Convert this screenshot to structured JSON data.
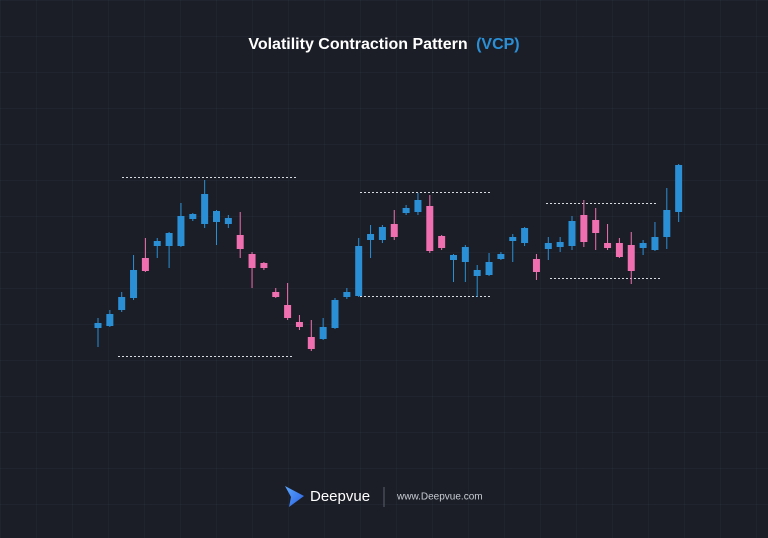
{
  "chart_data": {
    "type": "candlestick",
    "title": "Volatility Contraction Pattern",
    "title_highlight": "(VCP)",
    "up_color": "#2b8fd6",
    "down_color": "#f06fb0",
    "ylim": [
      30,
      250
    ],
    "categories": [
      null,
      null,
      null,
      null,
      null,
      null,
      null,
      null,
      null,
      null,
      null,
      null,
      null,
      null,
      null,
      null,
      null,
      null,
      null,
      null,
      null,
      null,
      null,
      null,
      null,
      null,
      null,
      null,
      null,
      null,
      null,
      null,
      null,
      null,
      null,
      null,
      null,
      null,
      null,
      null,
      null,
      null,
      null,
      null,
      null,
      null,
      null,
      null,
      null,
      null
    ],
    "open": [
      72,
      74,
      90,
      102,
      142,
      154,
      154,
      154,
      181,
      176,
      178,
      176,
      165,
      146,
      137,
      108,
      95,
      78,
      63,
      61,
      72,
      103,
      104,
      160,
      160,
      176,
      187,
      188,
      194,
      164,
      140,
      138,
      124,
      125,
      141,
      159,
      157,
      141,
      151,
      153,
      154,
      185,
      180,
      157,
      157,
      155,
      152,
      150,
      163,
      188
    ],
    "high": [
      82,
      90,
      108,
      145,
      162,
      162,
      168,
      197,
      187,
      220,
      190,
      185,
      188,
      148,
      138,
      112,
      117,
      85,
      80,
      82,
      102,
      112,
      162,
      175,
      175,
      190,
      195,
      207,
      205,
      165,
      146,
      155,
      135,
      147,
      148,
      166,
      173,
      146,
      163,
      163,
      184,
      200,
      192,
      176,
      162,
      168,
      160,
      178,
      212,
      236
    ],
    "low": [
      53,
      73,
      88,
      100,
      128,
      142,
      132,
      153,
      179,
      172,
      155,
      172,
      142,
      112,
      130,
      102,
      80,
      70,
      49,
      60,
      71,
      101,
      103,
      142,
      157,
      160,
      185,
      185,
      147,
      150,
      118,
      118,
      103,
      124,
      140,
      138,
      154,
      120,
      140,
      148,
      150,
      153,
      150,
      150,
      142,
      116,
      145,
      149,
      151,
      178
    ],
    "close": [
      77,
      86,
      103,
      130,
      129,
      159,
      167,
      184,
      186,
      206,
      189,
      182,
      151,
      132,
      132,
      103,
      82,
      73,
      51,
      73,
      100,
      108,
      154,
      166,
      173,
      163,
      192,
      200,
      149,
      152,
      145,
      153,
      130,
      138,
      146,
      163,
      172,
      128,
      157,
      158,
      179,
      158,
      167,
      152,
      143,
      129,
      157,
      163,
      190,
      235
    ],
    "levels": [
      223,
      44,
      208,
      104,
      197,
      122
    ],
    "footer_brand": "Deepvue",
    "footer_url": "www.Deepvue.com"
  }
}
